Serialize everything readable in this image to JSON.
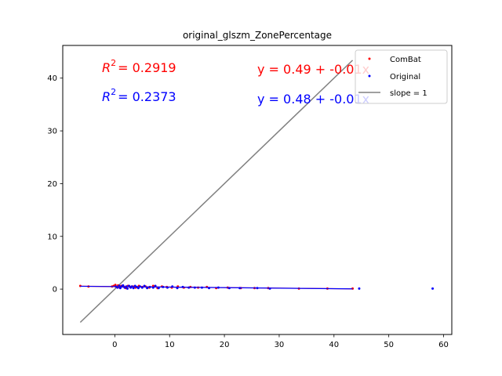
{
  "chart_data": {
    "type": "scatter",
    "title": "original_glszm_ZonePercentage",
    "xlabel": "",
    "ylabel": "",
    "xlim": [
      -9.5,
      61.5
    ],
    "ylim": [
      -8.6,
      46.2
    ],
    "xticks": [
      0,
      10,
      20,
      30,
      40,
      50,
      60
    ],
    "yticks": [
      0,
      10,
      20,
      30,
      40
    ],
    "grid": false,
    "legend": {
      "placement": "top-right",
      "entries": [
        {
          "label": "ComBat",
          "color": "#ff0000",
          "kind": "marker"
        },
        {
          "label": "Original",
          "color": "#0000ff",
          "kind": "marker"
        },
        {
          "label": "slope = 1",
          "color": "#808080",
          "kind": "line"
        }
      ]
    },
    "annotations": {
      "r2_combat": {
        "label": "R",
        "sup": "2",
        "value": "= 0.2919",
        "color": "#ff0000"
      },
      "r2_original": {
        "label": "R",
        "sup": "2",
        "value": "= 0.2373",
        "color": "#0000ff"
      },
      "eq_combat": {
        "text": "y = 0.49 + -0.01x",
        "color": "#ff0000"
      },
      "eq_original": {
        "text": "y = 0.48 + -0.01x",
        "color": "#0000ff"
      }
    },
    "identity_line": {
      "x": [
        -6.3,
        43.4
      ],
      "y": [
        -6.3,
        43.4
      ],
      "color": "#808080"
    },
    "series": [
      {
        "name": "ComBat",
        "color": "#ff0000",
        "fit": {
          "intercept": 0.49,
          "slope": -0.01,
          "x_range": [
            -6.3,
            43.4
          ]
        },
        "points": [
          [
            -6.3,
            0.6
          ],
          [
            -4.8,
            0.5
          ],
          [
            -0.5,
            0.5
          ],
          [
            -0.2,
            0.6
          ],
          [
            0.1,
            0.8
          ],
          [
            0.3,
            0.4
          ],
          [
            0.6,
            0.7
          ],
          [
            0.9,
            0.3
          ],
          [
            1.2,
            0.6
          ],
          [
            1.6,
            0.5
          ],
          [
            2.0,
            0.2
          ],
          [
            2.4,
            0.6
          ],
          [
            2.8,
            0.4
          ],
          [
            3.3,
            0.5
          ],
          [
            3.8,
            0.3
          ],
          [
            4.4,
            0.6
          ],
          [
            5.0,
            0.4
          ],
          [
            5.6,
            0.5
          ],
          [
            6.3,
            0.3
          ],
          [
            7.0,
            0.6
          ],
          [
            7.8,
            0.2
          ],
          [
            8.6,
            0.5
          ],
          [
            9.5,
            0.4
          ],
          [
            10.4,
            0.3
          ],
          [
            11.5,
            0.5
          ],
          [
            12.6,
            0.3
          ],
          [
            13.8,
            0.4
          ],
          [
            15.2,
            0.3
          ],
          [
            16.8,
            0.4
          ],
          [
            18.5,
            0.2
          ],
          [
            20.6,
            0.3
          ],
          [
            23.0,
            0.2
          ],
          [
            25.5,
            0.2
          ],
          [
            28.0,
            0.2
          ],
          [
            33.6,
            0.1
          ],
          [
            38.8,
            0.1
          ],
          [
            43.4,
            0.1
          ]
        ]
      },
      {
        "name": "Original",
        "color": "#0000ff",
        "fit": {
          "intercept": 0.48,
          "slope": -0.01,
          "x_range": [
            -6.3,
            43.4
          ]
        },
        "points": [
          [
            0.2,
            0.5
          ],
          [
            0.5,
            0.3
          ],
          [
            0.8,
            0.6
          ],
          [
            1.0,
            0.2
          ],
          [
            1.3,
            0.5
          ],
          [
            1.5,
            0.7
          ],
          [
            1.8,
            0.3
          ],
          [
            2.1,
            0.5
          ],
          [
            2.3,
            0.1
          ],
          [
            2.6,
            0.6
          ],
          [
            2.9,
            0.3
          ],
          [
            3.1,
            0.5
          ],
          [
            3.4,
            0.2
          ],
          [
            3.7,
            0.6
          ],
          [
            4.0,
            0.4
          ],
          [
            4.3,
            0.2
          ],
          [
            4.6,
            0.5
          ],
          [
            5.0,
            0.3
          ],
          [
            5.4,
            0.6
          ],
          [
            5.9,
            0.2
          ],
          [
            6.4,
            0.4
          ],
          [
            7.0,
            0.3
          ],
          [
            7.4,
            0.6
          ],
          [
            8.0,
            0.2
          ],
          [
            8.8,
            0.4
          ],
          [
            9.6,
            0.3
          ],
          [
            10.5,
            0.5
          ],
          [
            11.4,
            0.2
          ],
          [
            12.4,
            0.4
          ],
          [
            13.5,
            0.3
          ],
          [
            14.6,
            0.3
          ],
          [
            15.9,
            0.3
          ],
          [
            17.2,
            0.2
          ],
          [
            18.9,
            0.3
          ],
          [
            20.9,
            0.2
          ],
          [
            22.8,
            0.2
          ],
          [
            26.0,
            0.2
          ],
          [
            28.3,
            0.1
          ],
          [
            44.6,
            0.1
          ],
          [
            58.0,
            0.1
          ]
        ]
      }
    ]
  }
}
